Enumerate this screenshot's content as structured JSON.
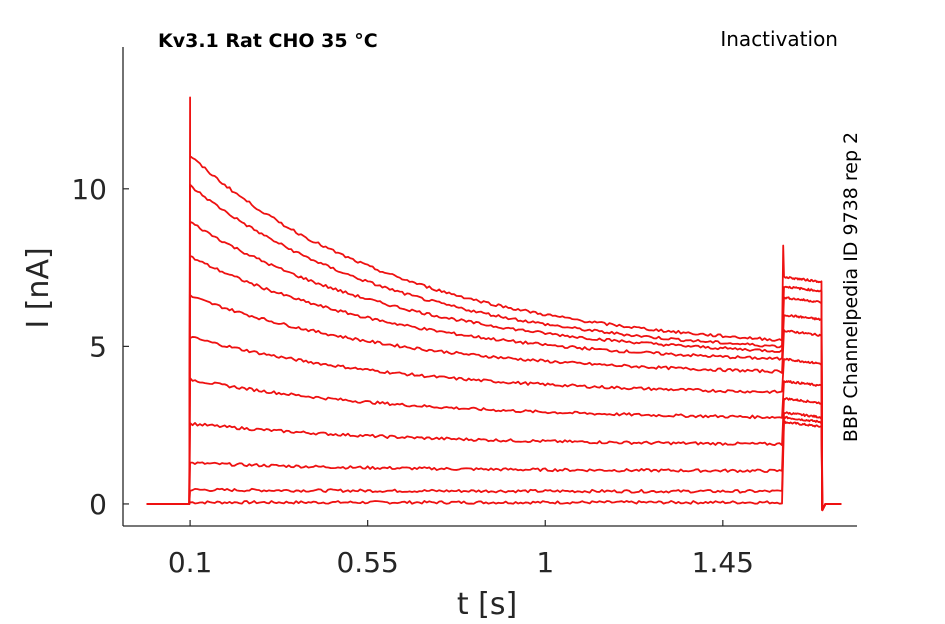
{
  "chart_data": {
    "type": "line",
    "title_left": "Kv3.1  Rat  CHO  35 °C",
    "title_right": "Inactivation",
    "side_note": "BBP Channelpedia ID 9738 rep 2",
    "xlabel": "t [s]",
    "ylabel": "I [nA]",
    "xlim": [
      -0.07,
      1.79
    ],
    "ylim": [
      -0.7,
      14.5
    ],
    "x_ticks": [
      {
        "value": 0.1,
        "label": "0.1"
      },
      {
        "value": 0.55,
        "label": "0.55"
      },
      {
        "value": 1.0,
        "label": "1"
      },
      {
        "value": 1.45,
        "label": "1.45"
      }
    ],
    "y_ticks": [
      {
        "value": 0,
        "label": "0"
      },
      {
        "value": 5,
        "label": "5"
      },
      {
        "value": 10,
        "label": "10"
      }
    ],
    "grid": false,
    "color": "#ee1111",
    "protocol": {
      "baseline_start": -0.01,
      "step_on": 0.1,
      "step_off": 1.6,
      "test_off": 1.7,
      "end": 1.75
    },
    "series": [
      {
        "values": {
          "initial": 0.05,
          "end": 0.05,
          "tail": 2.6
        }
      },
      {
        "values": {
          "initial": 0.45,
          "end": 0.4,
          "tail": 2.75
        }
      },
      {
        "values": {
          "initial": 1.3,
          "end": 1.05,
          "tail": 2.9
        }
      },
      {
        "values": {
          "initial": 2.55,
          "end": 1.9,
          "tail": 3.35
        }
      },
      {
        "values": {
          "initial": 3.95,
          "end": 2.75,
          "tail": 3.9
        }
      },
      {
        "values": {
          "initial": 5.3,
          "end": 3.55,
          "tail": 4.6
        }
      },
      {
        "values": {
          "initial": 6.6,
          "end": 4.2,
          "tail": 5.5
        }
      },
      {
        "values": {
          "initial": 7.85,
          "end": 4.6,
          "tail": 6.0
        }
      },
      {
        "values": {
          "initial": 8.95,
          "end": 4.85,
          "tail": 6.55
        }
      },
      {
        "values": {
          "initial": 10.1,
          "end": 5.0,
          "tail": 6.9
        }
      },
      {
        "values": {
          "initial": 11.05,
          "end": 5.2,
          "tail": 7.2
        }
      }
    ],
    "peak_transient": 12.9,
    "test_peak_transient": 8.2,
    "tail_undershoot": -0.2
  }
}
